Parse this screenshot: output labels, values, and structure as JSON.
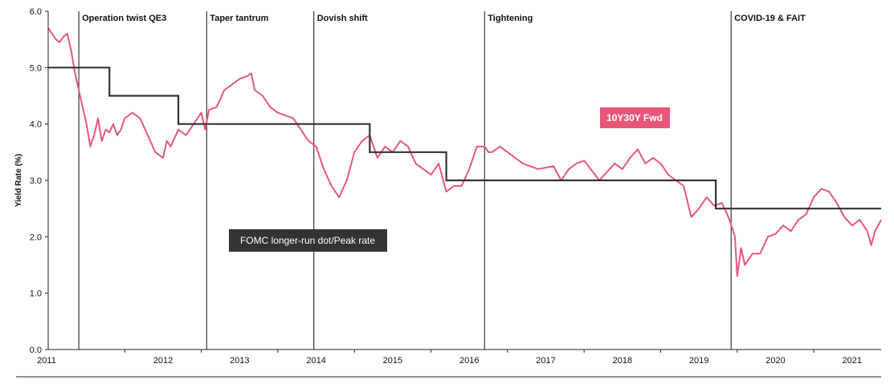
{
  "chart_data": {
    "type": "line",
    "ylabel": "Yield Rate (%)",
    "xlabel": "",
    "ylim": [
      0,
      6
    ],
    "xlim": [
      2011.0,
      2021.88
    ],
    "yticks": [
      0,
      1,
      2,
      3,
      4,
      5,
      6
    ],
    "ytick_labels": [
      "0.0",
      "1.0",
      "2.0",
      "3.0",
      "4.0",
      "5.0",
      "6.0"
    ],
    "xticks": [
      2011,
      2012,
      2013,
      2014,
      2015,
      2016,
      2017,
      2018,
      2019,
      2020,
      2021
    ],
    "xtick_labels": [
      "2011",
      "2012",
      "2013",
      "2014",
      "2015",
      "2016",
      "2017",
      "2018",
      "2019",
      "2020",
      "2021"
    ],
    "eras": [
      {
        "label": "Operation twist QE3",
        "start": 2011.4
      },
      {
        "label": "Taper tantrum",
        "start": 2013.07
      },
      {
        "label": "Dovish shift",
        "start": 2014.47
      },
      {
        "label": "Tightening",
        "start": 2016.7
      },
      {
        "label": "COVID-19 & FAIT",
        "start": 2019.92
      }
    ],
    "series": [
      {
        "name": "10Y30Y Fwd",
        "color": "#e8577a",
        "x": [
          2011.0,
          2011.05,
          2011.1,
          2011.15,
          2011.2,
          2011.25,
          2011.3,
          2011.35,
          2011.4,
          2011.45,
          2011.5,
          2011.55,
          2011.6,
          2011.65,
          2011.7,
          2011.75,
          2011.8,
          2011.85,
          2011.9,
          2011.95,
          2012.0,
          2012.1,
          2012.2,
          2012.3,
          2012.4,
          2012.5,
          2012.55,
          2012.6,
          2012.7,
          2012.8,
          2012.9,
          2013.0,
          2013.05,
          2013.1,
          2013.2,
          2013.3,
          2013.4,
          2013.5,
          2013.6,
          2013.65,
          2013.7,
          2013.8,
          2013.9,
          2014.0,
          2014.1,
          2014.2,
          2014.3,
          2014.4,
          2014.5,
          2014.6,
          2014.7,
          2014.8,
          2014.9,
          2015.0,
          2015.1,
          2015.2,
          2015.3,
          2015.4,
          2015.5,
          2015.6,
          2015.7,
          2015.8,
          2015.9,
          2016.0,
          2016.1,
          2016.2,
          2016.3,
          2016.4,
          2016.5,
          2016.6,
          2016.7,
          2016.75,
          2016.8,
          2016.9,
          2017.0,
          2017.2,
          2017.4,
          2017.6,
          2017.7,
          2017.8,
          2017.9,
          2018.0,
          2018.2,
          2018.4,
          2018.5,
          2018.6,
          2018.7,
          2018.8,
          2018.9,
          2019.0,
          2019.1,
          2019.2,
          2019.3,
          2019.4,
          2019.5,
          2019.6,
          2019.7,
          2019.8,
          2019.9,
          2019.97,
          2020.0,
          2020.05,
          2020.1,
          2020.2,
          2020.3,
          2020.4,
          2020.5,
          2020.6,
          2020.7,
          2020.8,
          2020.9,
          2021.0,
          2021.1,
          2021.2,
          2021.3,
          2021.4,
          2021.5,
          2021.6,
          2021.7,
          2021.75,
          2021.8,
          2021.88
        ],
        "y": [
          5.7,
          5.6,
          5.5,
          5.45,
          5.55,
          5.6,
          5.3,
          4.9,
          4.6,
          4.3,
          4.0,
          3.6,
          3.8,
          4.1,
          3.7,
          3.9,
          3.85,
          4.0,
          3.8,
          3.9,
          4.1,
          4.2,
          4.1,
          3.8,
          3.5,
          3.4,
          3.7,
          3.6,
          3.9,
          3.8,
          4.0,
          4.2,
          3.9,
          4.25,
          4.3,
          4.6,
          4.7,
          4.8,
          4.85,
          4.9,
          4.6,
          4.5,
          4.3,
          4.2,
          4.15,
          4.1,
          3.9,
          3.7,
          3.6,
          3.2,
          2.9,
          2.7,
          3.0,
          3.5,
          3.7,
          3.8,
          3.4,
          3.6,
          3.5,
          3.7,
          3.6,
          3.3,
          3.2,
          3.1,
          3.3,
          2.8,
          2.9,
          2.9,
          3.2,
          3.6,
          3.6,
          3.5,
          3.5,
          3.6,
          3.5,
          3.3,
          3.2,
          3.25,
          3.0,
          3.2,
          3.3,
          3.35,
          3.0,
          3.3,
          3.2,
          3.4,
          3.55,
          3.3,
          3.4,
          3.3,
          3.1,
          3.0,
          2.9,
          2.35,
          2.5,
          2.7,
          2.55,
          2.6,
          2.3,
          2.0,
          1.3,
          1.8,
          1.5,
          1.7,
          1.7,
          2.0,
          2.05,
          2.2,
          2.1,
          2.3,
          2.4,
          2.7,
          2.85,
          2.8,
          2.6,
          2.35,
          2.2,
          2.3,
          2.1,
          1.85,
          2.1,
          2.3
        ]
      },
      {
        "name": "FOMC longer-run dot/Peak rate",
        "color": "#333333",
        "step": true,
        "x": [
          2011.0,
          2011.8,
          2012.7,
          2015.2,
          2016.2,
          2019.72,
          2021.88
        ],
        "y": [
          5.0,
          4.5,
          4.0,
          3.5,
          3.0,
          2.5,
          2.5
        ]
      }
    ]
  }
}
